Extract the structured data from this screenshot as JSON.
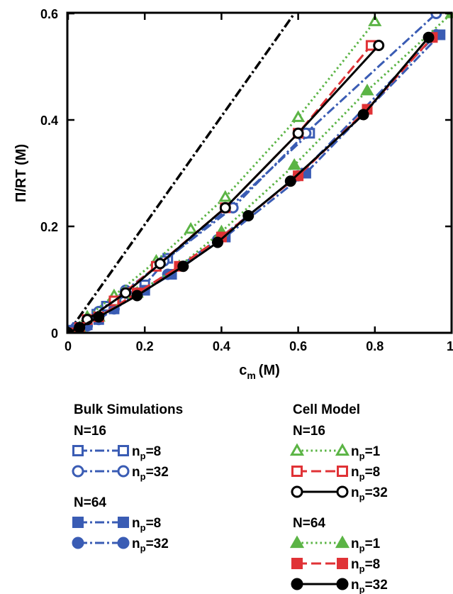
{
  "chart_data": {
    "type": "line",
    "xlabel": "c",
    "xlabel_sub": "m",
    "xlabel_unit": "(M)",
    "ylabel": "Π/RT (M)",
    "xlim": [
      0,
      1
    ],
    "ylim": [
      0,
      0.6
    ],
    "xticks": [
      "0",
      "0.2",
      "0.4",
      "0.6",
      "0.8",
      "1"
    ],
    "yticks": [
      "0",
      "0.2",
      "0.4",
      "0.6"
    ],
    "grid": false,
    "legend_position": "bottom",
    "reference_line": {
      "style": "dash-dot",
      "color": "#000000",
      "points": [
        [
          0,
          0
        ],
        [
          0.59,
          0.6
        ]
      ]
    },
    "groups": [
      {
        "title": "Bulk Simulations",
        "subgroups": [
          {
            "label": "N=16",
            "series": [
              "bulk16_8",
              "bulk16_32"
            ]
          },
          {
            "label": "N=64",
            "series": [
              "bulk64_8",
              "bulk64_32"
            ]
          }
        ]
      },
      {
        "title": "Cell Model",
        "subgroups": [
          {
            "label": "N=16",
            "series": [
              "cell16_1",
              "cell16_8",
              "cell16_32"
            ]
          },
          {
            "label": "N=64",
            "series": [
              "cell64_1",
              "cell64_8",
              "cell64_32"
            ]
          }
        ]
      }
    ],
    "series": [
      {
        "id": "bulk16_8",
        "np": "8",
        "color": "#3a5cb4",
        "dash": "dashdot",
        "marker": "square",
        "filled": false,
        "x": [
          0.0,
          0.01,
          0.025,
          0.05,
          0.075,
          0.1,
          0.125,
          0.2,
          0.26,
          0.42,
          0.63
        ],
        "y": [
          0.0,
          0.005,
          0.01,
          0.02,
          0.035,
          0.05,
          0.06,
          0.09,
          0.14,
          0.235,
          0.375
        ]
      },
      {
        "id": "bulk16_32",
        "np": "32",
        "color": "#3a5cb4",
        "dash": "dashdot",
        "marker": "circle",
        "filled": false,
        "x": [
          0.0,
          0.02,
          0.05,
          0.08,
          0.15,
          0.25,
          0.43,
          0.62,
          0.96
        ],
        "y": [
          0.0,
          0.01,
          0.025,
          0.04,
          0.08,
          0.135,
          0.235,
          0.375,
          0.6
        ]
      },
      {
        "id": "bulk64_8",
        "np": "8",
        "color": "#3a5cb4",
        "dash": "dashdot",
        "marker": "square",
        "filled": true,
        "x": [
          0.0,
          0.01,
          0.03,
          0.05,
          0.08,
          0.12,
          0.2,
          0.27,
          0.41,
          0.62,
          0.97
        ],
        "y": [
          0.0,
          0.004,
          0.008,
          0.015,
          0.025,
          0.045,
          0.08,
          0.11,
          0.18,
          0.3,
          0.56
        ]
      },
      {
        "id": "bulk64_32",
        "np": "32",
        "color": "#3a5cb4",
        "dash": "dashdot",
        "marker": "circle",
        "filled": true,
        "x": [
          0.0,
          0.02,
          0.05,
          0.08,
          0.12,
          0.18,
          0.26,
          0.39,
          0.6,
          0.96
        ],
        "y": [
          0.0,
          0.005,
          0.013,
          0.025,
          0.045,
          0.075,
          0.11,
          0.175,
          0.295,
          0.56
        ]
      },
      {
        "id": "cell16_1",
        "np": "1",
        "color": "#5bb445",
        "dash": "dotted",
        "marker": "triangle",
        "filled": false,
        "x": [
          0.0,
          0.05,
          0.12,
          0.23,
          0.32,
          0.41,
          0.6,
          0.8
        ],
        "y": [
          0.0,
          0.03,
          0.07,
          0.135,
          0.195,
          0.255,
          0.405,
          0.585
        ]
      },
      {
        "id": "cell16_8",
        "np": "8",
        "color": "#e03236",
        "dash": "dashed",
        "marker": "square",
        "filled": false,
        "x": [
          0.0,
          0.05,
          0.12,
          0.23,
          0.41,
          0.6,
          0.79
        ],
        "y": [
          0.0,
          0.025,
          0.06,
          0.125,
          0.235,
          0.375,
          0.54
        ]
      },
      {
        "id": "cell16_32",
        "np": "32",
        "color": "#000000",
        "dash": "solid",
        "marker": "circle",
        "filled": false,
        "x": [
          0.0,
          0.05,
          0.15,
          0.24,
          0.41,
          0.6,
          0.81
        ],
        "y": [
          0.0,
          0.025,
          0.075,
          0.13,
          0.235,
          0.375,
          0.54
        ]
      },
      {
        "id": "cell64_1",
        "np": "1",
        "color": "#5bb445",
        "dash": "dotted",
        "marker": "triangle",
        "filled": true,
        "x": [
          0.0,
          0.03,
          0.08,
          0.18,
          0.29,
          0.4,
          0.59,
          0.78,
          1.0
        ],
        "y": [
          0.0,
          0.01,
          0.03,
          0.075,
          0.125,
          0.19,
          0.315,
          0.455,
          0.6
        ]
      },
      {
        "id": "cell64_8",
        "np": "8",
        "color": "#e03236",
        "dash": "dashed",
        "marker": "square",
        "filled": true,
        "x": [
          0.0,
          0.03,
          0.08,
          0.18,
          0.29,
          0.4,
          0.6,
          0.78,
          0.95
        ],
        "y": [
          0.0,
          0.01,
          0.03,
          0.075,
          0.125,
          0.18,
          0.295,
          0.42,
          0.555
        ]
      },
      {
        "id": "cell64_32",
        "np": "32",
        "color": "#000000",
        "dash": "solid",
        "marker": "circle",
        "filled": true,
        "x": [
          0.0,
          0.03,
          0.08,
          0.18,
          0.3,
          0.39,
          0.47,
          0.58,
          0.77,
          0.94
        ],
        "y": [
          0.0,
          0.01,
          0.03,
          0.07,
          0.125,
          0.17,
          0.22,
          0.285,
          0.41,
          0.555
        ]
      }
    ]
  }
}
